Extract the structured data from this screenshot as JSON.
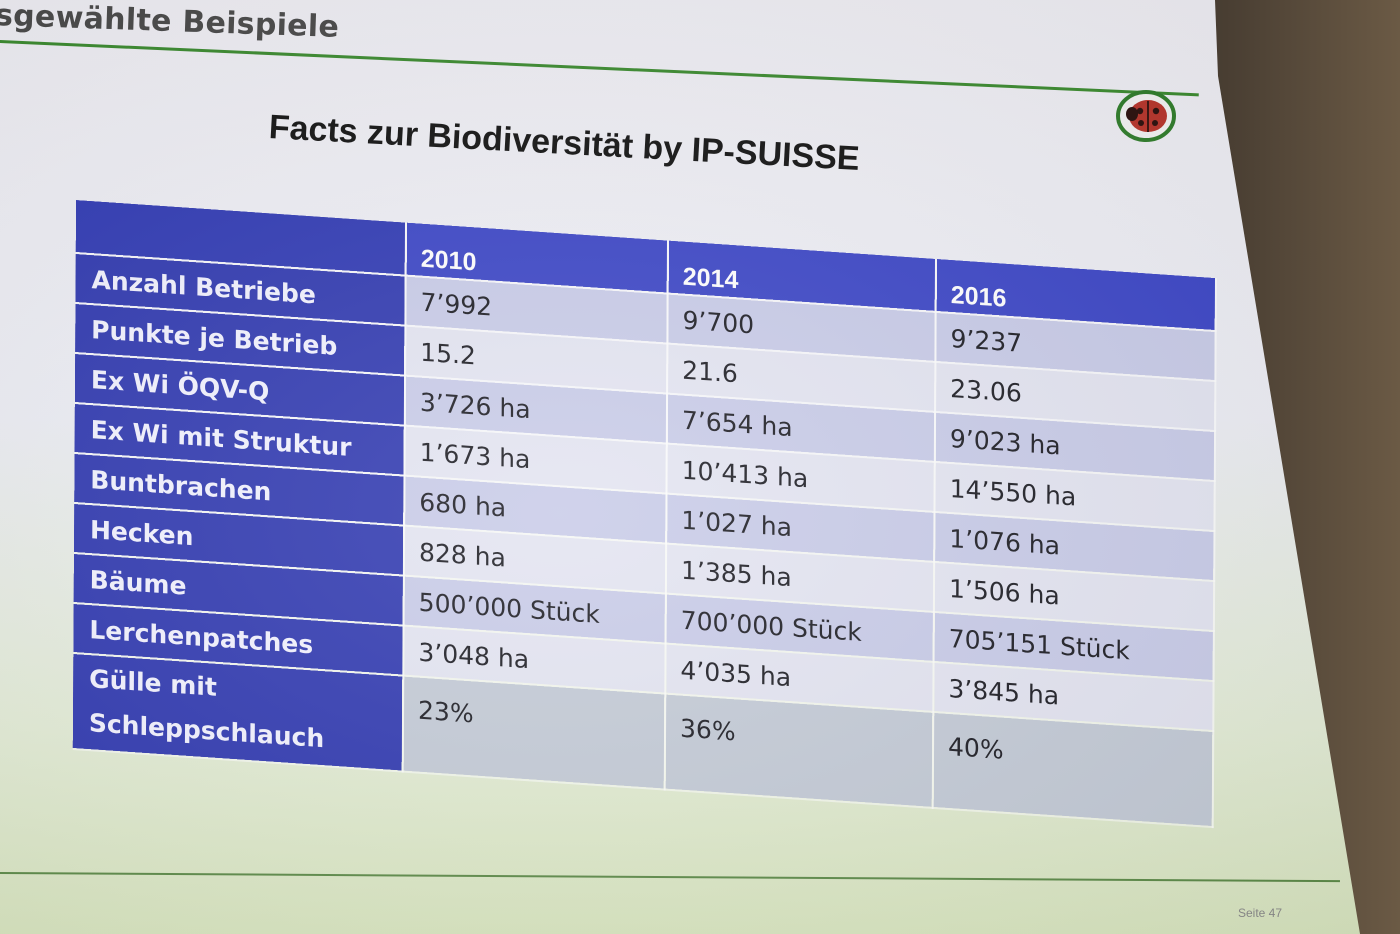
{
  "header": {
    "section_title": "sgewählte Beispiele"
  },
  "slide": {
    "title": "Facts zur Biodiversität by IP-SUISSE",
    "page_label": "Seite 47"
  },
  "table": {
    "columns": [
      "2010",
      "2014",
      "2016"
    ],
    "rows": [
      {
        "label": "Anzahl Betriebe",
        "values": [
          "7’992",
          "9’700",
          "9’237"
        ]
      },
      {
        "label": "Punkte je Betrieb",
        "values": [
          "15.2",
          "21.6",
          "23.06"
        ]
      },
      {
        "label": "Ex Wi ÖQV-Q",
        "values": [
          "3’726 ha",
          "7’654 ha",
          "9’023 ha"
        ]
      },
      {
        "label": "Ex Wi mit Struktur",
        "values": [
          "1’673 ha",
          "10’413 ha",
          "14’550 ha"
        ]
      },
      {
        "label": "Buntbrachen",
        "values": [
          "680 ha",
          "1’027 ha",
          "1’076 ha"
        ]
      },
      {
        "label": "Hecken",
        "values": [
          "828 ha",
          "1’385 ha",
          "1’506 ha"
        ]
      },
      {
        "label": "Bäume",
        "values": [
          "500’000 Stück",
          "700’000 Stück",
          "705’151 Stück"
        ]
      },
      {
        "label": "Lerchenpatches",
        "values": [
          "3’048 ha",
          "4’035 ha",
          "3’845 ha"
        ]
      },
      {
        "label": "Gülle mit Schleppschlauch",
        "values": [
          "23%",
          "36%",
          "40%"
        ]
      }
    ]
  },
  "colors": {
    "header_blue": "#3a44c6",
    "label_blue": "#2f38b0",
    "row_light": "#e3e4f1",
    "row_dark": "#c8cbe8",
    "accent_green": "#3b8b2f"
  },
  "icons": {
    "logo": "ladybug-logo-icon"
  }
}
